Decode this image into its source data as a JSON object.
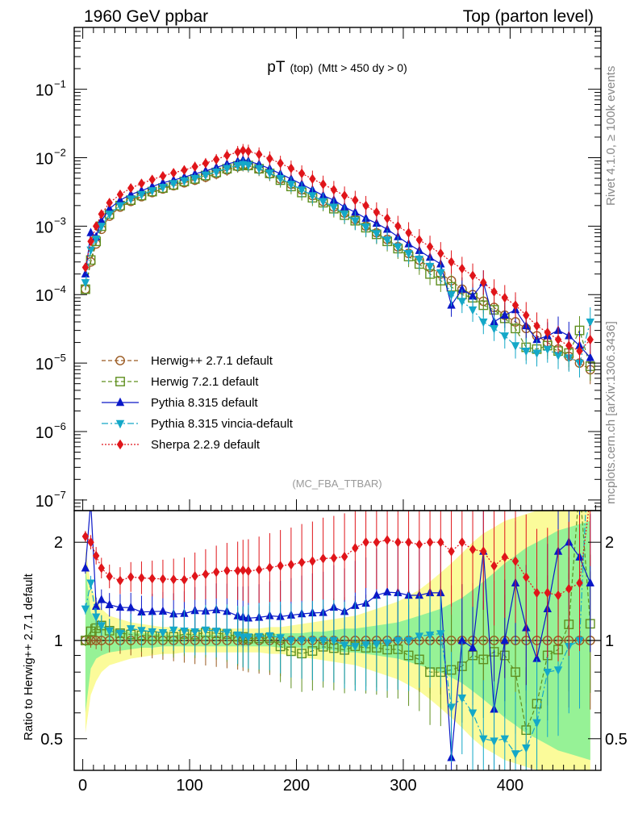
{
  "header": {
    "left": "1960 GeV ppbar",
    "right": "Top (parton level)"
  },
  "side_labels": {
    "rivet": "Rivet 4.1.0, ≥ 100k events",
    "mcplots": "mcplots.cern.ch [arXiv:1306.3436]"
  },
  "chart_data": {
    "type": "line",
    "title_main": "pT",
    "title_sub1": "(top)",
    "title_sub2": "(Mtt > 450 dy > 0)",
    "analysis_tag": "(MC_FBA_TTBAR)",
    "yscale": "log",
    "xlim": [
      -8,
      485
    ],
    "ylim": [
      7e-08,
      0.8
    ],
    "xticks": [
      0,
      100,
      200,
      300,
      400
    ],
    "yticks": [
      {
        "value": 0.1,
        "mant": "10",
        "exp": "−1"
      },
      {
        "value": 0.01,
        "mant": "10",
        "exp": "−2"
      },
      {
        "value": 0.001,
        "mant": "10",
        "exp": "−3"
      },
      {
        "value": 0.0001,
        "mant": "10",
        "exp": "−4"
      },
      {
        "value": 1e-05,
        "mant": "10",
        "exp": "−5"
      },
      {
        "value": 1e-06,
        "mant": "10",
        "exp": "−6"
      },
      {
        "value": 1e-07,
        "mant": "10",
        "exp": "−7"
      }
    ],
    "x": [
      2.5,
      7.5,
      12.5,
      17.5,
      25,
      35,
      45,
      55,
      65,
      75,
      85,
      95,
      105,
      115,
      125,
      135,
      145,
      150,
      155,
      165,
      175,
      185,
      195,
      205,
      215,
      225,
      235,
      245,
      255,
      265,
      275,
      285,
      295,
      305,
      315,
      325,
      335,
      345,
      355,
      365,
      375,
      385,
      395,
      405,
      415,
      425,
      435,
      445,
      455,
      465,
      475
    ],
    "series": [
      {
        "name": "Herwig++ 2.7.1 default",
        "color": "#9a5a22",
        "marker": "circle",
        "dash": "5,3",
        "values": [
          0.00012,
          0.0003,
          0.00055,
          0.0009,
          0.0014,
          0.0019,
          0.0023,
          0.0027,
          0.0031,
          0.0035,
          0.0039,
          0.0043,
          0.0047,
          0.0052,
          0.0058,
          0.0066,
          0.0074,
          0.0078,
          0.0076,
          0.0068,
          0.0058,
          0.0049,
          0.0041,
          0.0034,
          0.0028,
          0.0023,
          0.0019,
          0.00155,
          0.00125,
          0.001,
          0.0008,
          0.00064,
          0.0005,
          0.0004,
          0.00032,
          0.00025,
          0.0002,
          0.00016,
          0.00012,
          0.0001,
          8e-05,
          6.5e-05,
          5e-05,
          4e-05,
          3.2e-05,
          2.5e-05,
          2e-05,
          1.6e-05,
          1.25e-05,
          1e-05,
          8e-06
        ]
      },
      {
        "name": "Herwig 7.2.1 default",
        "color": "#5f8f1f",
        "marker": "square",
        "dash": "5,3",
        "values": [
          0.00012,
          0.00032,
          0.0006,
          0.001,
          0.0015,
          0.002,
          0.0024,
          0.0028,
          0.0032,
          0.0036,
          0.004,
          0.0045,
          0.0049,
          0.0055,
          0.0061,
          0.0069,
          0.0076,
          0.008,
          0.0077,
          0.0069,
          0.0059,
          0.0047,
          0.0038,
          0.0031,
          0.0026,
          0.0022,
          0.0018,
          0.00145,
          0.0012,
          0.00095,
          0.00076,
          0.0006,
          0.00047,
          0.00036,
          0.00028,
          0.0002,
          0.00016,
          0.00013,
          0.0001,
          9e-05,
          7e-05,
          6e-05,
          4.5e-05,
          3.2e-05,
          1.7e-05,
          1.6e-05,
          1.8e-05,
          1.5e-05,
          1.4e-05,
          3e-05,
          9e-06
        ]
      },
      {
        "name": "Pythia 8.315 default",
        "color": "#0a18c8",
        "marker": "triangle-up",
        "dash": "",
        "values": [
          0.0002,
          0.0008,
          0.0007,
          0.0012,
          0.0018,
          0.0024,
          0.0029,
          0.0033,
          0.0038,
          0.0043,
          0.0047,
          0.0052,
          0.0058,
          0.0064,
          0.0072,
          0.0081,
          0.0088,
          0.0092,
          0.0089,
          0.008,
          0.0069,
          0.0058,
          0.0049,
          0.0041,
          0.0034,
          0.0028,
          0.0024,
          0.0019,
          0.0016,
          0.0013,
          0.0011,
          0.0009,
          0.0007,
          0.00055,
          0.00044,
          0.00035,
          0.00028,
          7e-05,
          0.00012,
          9.5e-05,
          0.00015,
          4e-05,
          5e-05,
          6e-05,
          3.5e-05,
          2.2e-05,
          2.5e-05,
          3e-05,
          2.5e-05,
          1.8e-05,
          1.2e-05
        ]
      },
      {
        "name": "Pythia 8.315 vincia-default",
        "color": "#14a8c8",
        "marker": "triangle-down",
        "dash": "8,3,2,3",
        "values": [
          0.00015,
          0.00045,
          0.00065,
          0.001,
          0.0015,
          0.002,
          0.0025,
          0.0029,
          0.0033,
          0.0037,
          0.0042,
          0.0046,
          0.005,
          0.0056,
          0.0062,
          0.007,
          0.0077,
          0.008,
          0.0078,
          0.007,
          0.006,
          0.005,
          0.0041,
          0.0034,
          0.0028,
          0.0023,
          0.0019,
          0.0015,
          0.0012,
          0.00097,
          0.00078,
          0.00063,
          0.0005,
          0.0004,
          0.00033,
          0.00026,
          0.00021,
          0.0001,
          8e-05,
          6e-05,
          4e-05,
          3.2e-05,
          2.5e-05,
          1.8e-05,
          1.5e-05,
          1.4e-05,
          1.6e-05,
          1.3e-05,
          1.2e-05,
          1e-05,
          4e-05
        ]
      },
      {
        "name": "Sherpa 2.2.9 default",
        "color": "#e0151a",
        "marker": "diamond",
        "dash": "2,2",
        "values": [
          0.00025,
          0.0006,
          0.001,
          0.0015,
          0.0022,
          0.0029,
          0.0036,
          0.0042,
          0.0048,
          0.0054,
          0.006,
          0.0066,
          0.0074,
          0.0083,
          0.0094,
          0.0108,
          0.0121,
          0.0128,
          0.0124,
          0.0112,
          0.0097,
          0.0083,
          0.007,
          0.0059,
          0.0049,
          0.0041,
          0.0034,
          0.0028,
          0.0024,
          0.002,
          0.0016,
          0.0013,
          0.001,
          0.0008,
          0.00063,
          0.0005,
          0.0004,
          0.0003,
          0.00024,
          0.00019,
          0.00015,
          0.00011,
          9e-05,
          7e-05,
          5e-05,
          3.5e-05,
          2.8e-05,
          2.2e-05,
          1.8e-05,
          1.5e-05,
          2.2e-05
        ]
      }
    ],
    "ratio": {
      "ylabel": "Ratio to Herwig++ 2.7.1 default",
      "yscale": "log",
      "ylim": [
        0.4,
        2.5
      ],
      "yticks": [
        0.5,
        1,
        2
      ],
      "yticklabels": [
        "0.5",
        "1",
        "2"
      ],
      "band_inner": [
        0.6,
        0.82,
        0.88,
        0.9,
        0.92,
        0.93,
        0.94,
        0.95,
        0.95,
        0.96,
        0.96,
        0.96,
        0.96,
        0.96,
        0.96,
        0.96,
        0.96,
        0.96,
        0.96,
        0.96,
        0.96,
        0.95,
        0.95,
        0.95,
        0.94,
        0.94,
        0.93,
        0.92,
        0.92,
        0.91,
        0.9,
        0.89,
        0.88,
        0.86,
        0.84,
        0.82,
        0.8,
        0.77,
        0.74,
        0.7,
        0.66,
        0.62,
        0.58,
        0.55,
        0.52,
        0.5,
        0.48,
        0.46,
        0.45,
        0.44,
        0.43
      ],
      "band_outer": [
        0.52,
        0.68,
        0.75,
        0.8,
        0.84,
        0.86,
        0.88,
        0.89,
        0.9,
        0.91,
        0.91,
        0.92,
        0.92,
        0.92,
        0.92,
        0.92,
        0.92,
        0.92,
        0.92,
        0.92,
        0.91,
        0.91,
        0.9,
        0.89,
        0.88,
        0.87,
        0.86,
        0.85,
        0.84,
        0.82,
        0.8,
        0.78,
        0.76,
        0.73,
        0.7,
        0.66,
        0.62,
        0.58,
        0.54,
        0.5,
        0.47,
        0.45,
        0.43,
        0.42,
        0.41,
        0.4,
        0.4,
        0.4,
        0.4,
        0.4,
        0.4
      ]
    }
  }
}
